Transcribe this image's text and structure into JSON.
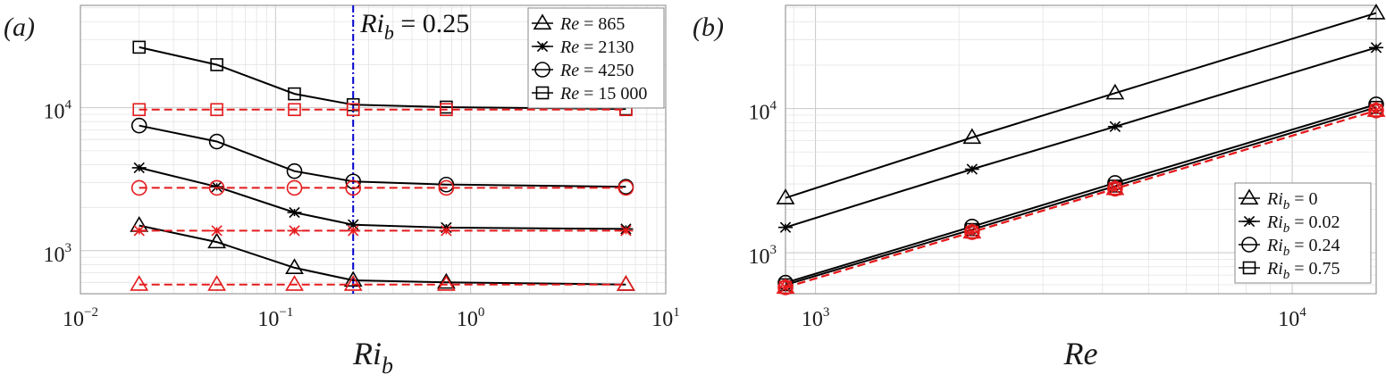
{
  "chart_data": [
    {
      "type": "line",
      "panel_label": "(a)",
      "xlabel": "Ri_b",
      "ylabel": "",
      "xscale": "log",
      "yscale": "log",
      "xlim": [
        0.01,
        10
      ],
      "ylim": [
        500,
        52000
      ],
      "grid": true,
      "xticks": [
        {
          "base": "10",
          "exp": "−2"
        },
        {
          "base": "10",
          "exp": "−1"
        },
        {
          "base": "10",
          "exp": "0"
        },
        {
          "base": "10",
          "exp": "1"
        }
      ],
      "yticks": [
        {
          "base": "10",
          "exp": "3"
        },
        {
          "base": "10",
          "exp": "4"
        }
      ],
      "annotation": {
        "text_main": "Ri",
        "text_sub": "b",
        "text_rest": " = 0.25",
        "x": 0.25,
        "color": "#0000cc"
      },
      "legend": {
        "placement": "top-right",
        "entries": [
          {
            "marker": "triangle",
            "label_var": "Re",
            "label_val": " = 865"
          },
          {
            "marker": "star",
            "label_var": "Re",
            "label_val": " = 2130"
          },
          {
            "marker": "circle",
            "label_var": "Re",
            "label_val": " = 4250"
          },
          {
            "marker": "square",
            "label_var": "Re",
            "label_val": " = 15 000"
          }
        ]
      },
      "x": [
        0.02,
        0.05,
        0.125,
        0.25,
        0.75,
        6.25
      ],
      "series": [
        {
          "name": "Re = 865",
          "marker": "triangle",
          "color": "#000000",
          "style": "solid",
          "values": [
            1500,
            1150,
            760,
            620,
            600,
            580
          ]
        },
        {
          "name": "Re = 2130",
          "marker": "star",
          "color": "#000000",
          "style": "solid",
          "values": [
            3800,
            2800,
            1850,
            1520,
            1450,
            1420
          ]
        },
        {
          "name": "Re = 4250",
          "marker": "circle",
          "color": "#000000",
          "style": "solid",
          "values": [
            7500,
            5800,
            3600,
            3050,
            2900,
            2800
          ]
        },
        {
          "name": "Re = 15 000",
          "marker": "square",
          "color": "#000000",
          "style": "solid",
          "values": [
            26500,
            20000,
            12500,
            10500,
            10100,
            9800
          ]
        },
        {
          "name": "",
          "marker": "triangle",
          "color": "#e41a1c",
          "style": "dashed",
          "values": [
            580,
            580,
            580,
            580,
            580,
            580
          ]
        },
        {
          "name": "",
          "marker": "star",
          "color": "#e41a1c",
          "style": "dashed",
          "values": [
            1380,
            1380,
            1380,
            1380,
            1380,
            1380
          ]
        },
        {
          "name": "",
          "marker": "circle",
          "color": "#e41a1c",
          "style": "dashed",
          "values": [
            2750,
            2750,
            2750,
            2750,
            2750,
            2750
          ]
        },
        {
          "name": "",
          "marker": "square",
          "color": "#e41a1c",
          "style": "dashed",
          "values": [
            9700,
            9700,
            9700,
            9700,
            9700,
            9700
          ]
        }
      ]
    },
    {
      "type": "line",
      "panel_label": "(b)",
      "xlabel": "Re",
      "ylabel": "",
      "xscale": "log",
      "yscale": "log",
      "xlim": [
        865,
        15000
      ],
      "ylim": [
        520,
        52000
      ],
      "grid": true,
      "xticks": [
        {
          "base": "10",
          "exp": "3"
        },
        {
          "base": "10",
          "exp": "4"
        }
      ],
      "yticks": [
        {
          "base": "10",
          "exp": "3"
        },
        {
          "base": "10",
          "exp": "4"
        }
      ],
      "legend": {
        "placement": "bottom-right",
        "entries": [
          {
            "marker": "triangle",
            "label_var": "Ri",
            "label_sub": "b",
            "label_val": " = 0"
          },
          {
            "marker": "star",
            "label_var": "Ri",
            "label_sub": "b",
            "label_val": " = 0.02"
          },
          {
            "marker": "circle",
            "label_var": "Ri",
            "label_sub": "b",
            "label_val": " = 0.24"
          },
          {
            "marker": "square",
            "label_var": "Ri",
            "label_sub": "b",
            "label_val": " = 0.75"
          }
        ]
      },
      "x": [
        865,
        2130,
        4250,
        15000
      ],
      "series": [
        {
          "name": "Ri_b = 0",
          "marker": "triangle",
          "color": "#000000",
          "style": "solid",
          "values": [
            2400,
            6300,
            12800,
            46000
          ]
        },
        {
          "name": "Ri_b = 0.02",
          "marker": "star",
          "color": "#000000",
          "style": "solid",
          "values": [
            1500,
            3800,
            7500,
            26500
          ]
        },
        {
          "name": "Ri_b = 0.24",
          "marker": "circle",
          "color": "#000000",
          "style": "solid",
          "values": [
            620,
            1520,
            3050,
            10700
          ]
        },
        {
          "name": "Ri_b = 0.75",
          "marker": "square",
          "color": "#000000",
          "style": "solid",
          "values": [
            600,
            1450,
            2900,
            10200
          ]
        },
        {
          "name": "",
          "marker": "triangle",
          "color": "#e41a1c",
          "style": "dashed",
          "values": [
            575,
            1390,
            2780,
            9700
          ]
        },
        {
          "name": "",
          "marker": "star",
          "color": "#e41a1c",
          "style": "dashed",
          "values": [
            575,
            1390,
            2780,
            9700
          ]
        },
        {
          "name": "",
          "marker": "circle",
          "color": "#e41a1c",
          "style": "dashed",
          "values": [
            575,
            1390,
            2780,
            9700
          ]
        },
        {
          "name": "",
          "marker": "square",
          "color": "#e41a1c",
          "style": "dashed",
          "values": [
            575,
            1390,
            2780,
            9700
          ]
        }
      ]
    }
  ]
}
